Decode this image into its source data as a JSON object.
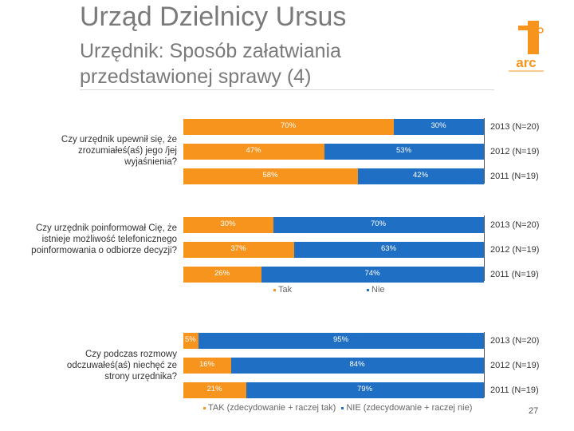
{
  "slide": {
    "title": "Urząd Dzielnicy Ursus",
    "subtitle": "Urzędnik: Sposób załatwiania przedstawionej sprawy (4)",
    "page_number": "27"
  },
  "colors": {
    "tak": "#F7941D",
    "nie": "#1F6FC5"
  },
  "legend_top": {
    "tak": "Tak",
    "nie": "Nie"
  },
  "legend_bottom": {
    "tak": "TAK (zdecydowanie + raczej tak)",
    "nie": "NIE (zdecydowanie + raczej nie)"
  },
  "chart_data": [
    {
      "type": "bar",
      "orientation": "horizontal",
      "stacked": true,
      "percent_stacked": true,
      "question": "Czy urzędnik upewnił się, że zrozumiałeś(aś) jego /jej wyjaśnienia?",
      "categories": [
        "2013 (N=20)",
        "2012 (N=19)",
        "2011 (N=19)"
      ],
      "series": [
        {
          "name": "Tak",
          "values": [
            70,
            47,
            58
          ],
          "labels": [
            "70%",
            "47%",
            "58%"
          ]
        },
        {
          "name": "Nie",
          "values": [
            30,
            53,
            42
          ],
          "labels": [
            "30%",
            "53%",
            "42%"
          ]
        }
      ]
    },
    {
      "type": "bar",
      "orientation": "horizontal",
      "stacked": true,
      "percent_stacked": true,
      "question": "Czy urzędnik poinformował Cię, że istnieje możliwość telefonicznego poinformowania o odbiorze decyzji?",
      "categories": [
        "2013 (N=20)",
        "2012 (N=19)",
        "2011 (N=19)"
      ],
      "series": [
        {
          "name": "Tak",
          "values": [
            30,
            37,
            26
          ],
          "labels": [
            "30%",
            "37%",
            "26%"
          ]
        },
        {
          "name": "Nie",
          "values": [
            70,
            63,
            74
          ],
          "labels": [
            "70%",
            "63%",
            "74%"
          ]
        }
      ]
    },
    {
      "type": "bar",
      "orientation": "horizontal",
      "stacked": true,
      "percent_stacked": true,
      "question": "Czy podczas rozmowy odczuwałeś(aś) niechęć ze strony urzędnika?",
      "categories": [
        "2013 (N=20)",
        "2012 (N=19)",
        "2011 (N=19)"
      ],
      "series": [
        {
          "name": "TAK (zdecydowanie + raczej tak)",
          "values": [
            5,
            16,
            21
          ],
          "labels": [
            "5%",
            "16%",
            "21%"
          ]
        },
        {
          "name": "NIE (zdecydowanie + raczej nie)",
          "values": [
            95,
            84,
            79
          ],
          "labels": [
            "95%",
            "84%",
            "79%"
          ]
        }
      ]
    }
  ]
}
